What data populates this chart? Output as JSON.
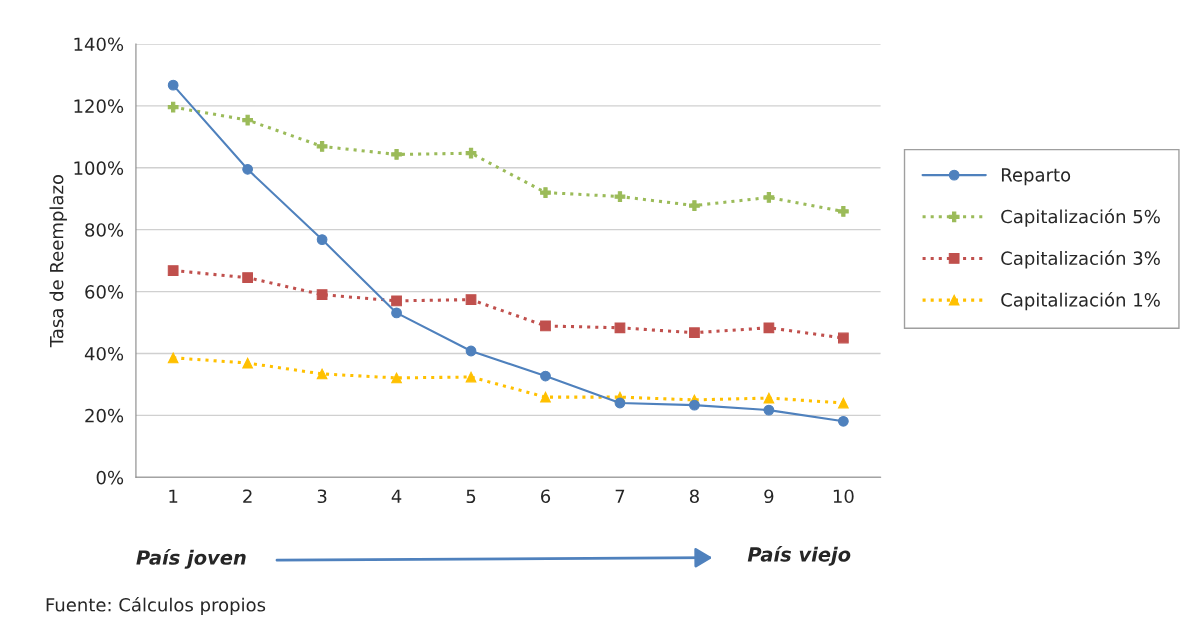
{
  "chart_data": {
    "type": "line",
    "ylabel": "Tasa de Reemplazo",
    "categories": [
      "1",
      "2",
      "3",
      "4",
      "5",
      "6",
      "7",
      "8",
      "9",
      "10"
    ],
    "series": [
      {
        "name": "Reparto",
        "color": "#4f81bd",
        "marker": "circle",
        "line_style": "solid",
        "values": [
          126.7,
          99.5,
          76.8,
          53.1,
          40.8,
          32.7,
          24.0,
          23.3,
          21.7,
          18.1
        ]
      },
      {
        "name": "Capitalización 5%",
        "color": "#9bbb59",
        "marker": "cross",
        "line_style": "dotted",
        "values": [
          119.6,
          115.4,
          106.9,
          104.3,
          104.7,
          92.0,
          90.7,
          87.8,
          90.4,
          85.9
        ]
      },
      {
        "name": "Capitalización 3%",
        "color": "#c0504d",
        "marker": "square",
        "line_style": "dotted",
        "values": [
          66.8,
          64.5,
          59.0,
          57.0,
          57.4,
          48.9,
          48.3,
          46.7,
          48.3,
          45.0
        ]
      },
      {
        "name": "Capitalización 1%",
        "color": "#ffc000",
        "marker": "triangle",
        "line_style": "dotted",
        "values": [
          38.6,
          36.9,
          33.4,
          32.1,
          32.4,
          25.9,
          25.9,
          25.0,
          25.6,
          24.0
        ]
      }
    ],
    "ylim": [
      0,
      140
    ],
    "yticks": [
      {
        "value": 0,
        "label": "0%"
      },
      {
        "value": 20,
        "label": "20%"
      },
      {
        "value": 40,
        "label": "40%"
      },
      {
        "value": 60,
        "label": "60%"
      },
      {
        "value": 80,
        "label": "80%"
      },
      {
        "value": 100,
        "label": "100%"
      },
      {
        "value": 120,
        "label": "120%"
      },
      {
        "value": 140,
        "label": "140%"
      }
    ],
    "grid": "y",
    "legend": "right",
    "annotations": [
      "País joven",
      "País viejo",
      "Fuente: Cálculos propios"
    ]
  }
}
